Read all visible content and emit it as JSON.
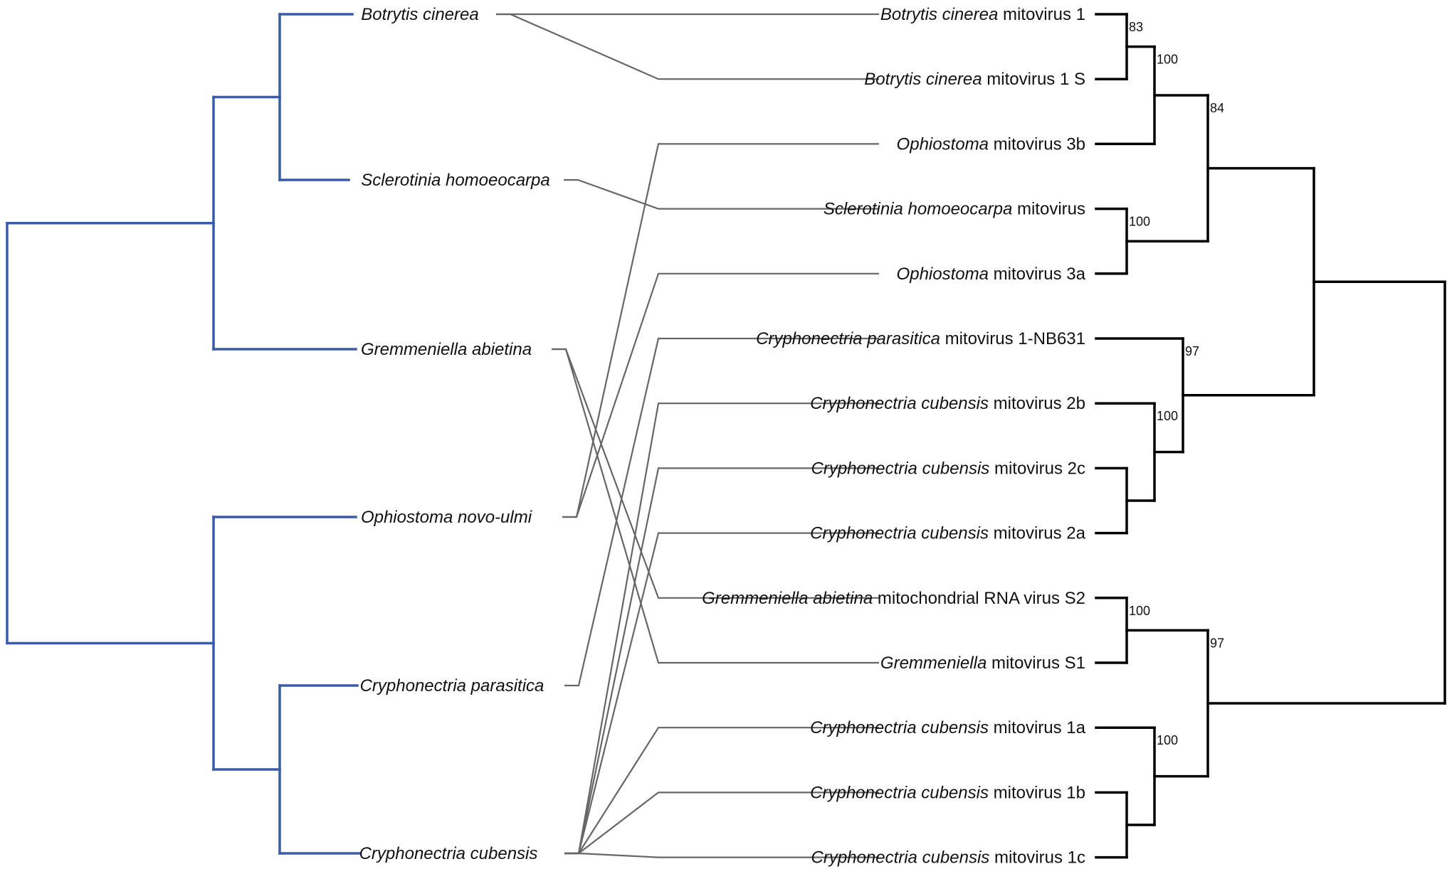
{
  "colors": {
    "host_tree": "#3a5ba8",
    "virus_tree": "#000000",
    "links": "#666666"
  },
  "hosts": [
    {
      "id": "h_bc",
      "name": "Botrytis cinerea"
    },
    {
      "id": "h_sh",
      "name": "Sclerotinia homoeocarpa"
    },
    {
      "id": "h_ga",
      "name": "Gremmeniella abietina"
    },
    {
      "id": "h_on",
      "name": "Ophiostoma novo-ulmi"
    },
    {
      "id": "h_cp",
      "name": "Cryphonectria parasitica"
    },
    {
      "id": "h_cc",
      "name": "Cryphonectria cubensis"
    }
  ],
  "viruses": [
    {
      "id": "v1",
      "italic": "Botrytis cinerea",
      "rest": " mitovirus 1",
      "host": "h_bc"
    },
    {
      "id": "v2",
      "italic": "Botrytis cinerea",
      "rest": " mitovirus 1 S",
      "host": "h_bc"
    },
    {
      "id": "v3",
      "italic": "Ophiostoma",
      "rest": " mitovirus 3b",
      "host": "h_on"
    },
    {
      "id": "v4",
      "italic": "Sclerotinia homoeocarpa",
      "rest": " mitovirus",
      "host": "h_sh"
    },
    {
      "id": "v5",
      "italic": "Ophiostoma",
      "rest": " mitovirus 3a",
      "host": "h_on"
    },
    {
      "id": "v6",
      "italic": "Cryphonectria parasitica",
      "rest": " mitovirus 1-NB631",
      "host": "h_cp"
    },
    {
      "id": "v7",
      "italic": "Cryphonectria cubensis",
      "rest": " mitovirus 2b",
      "host": "h_cc"
    },
    {
      "id": "v8",
      "italic": "Cryphonectria cubensis",
      "rest": " mitovirus 2c",
      "host": "h_cc"
    },
    {
      "id": "v9",
      "italic": "Cryphonectria cubensis",
      "rest": " mitovirus 2a",
      "host": "h_cc"
    },
    {
      "id": "v10",
      "italic": "Gremmeniella abietina",
      "rest": " mitochondrial RNA virus S2",
      "host": "h_ga"
    },
    {
      "id": "v11",
      "italic": "Gremmeniella",
      "rest": " mitovirus S1",
      "host": "h_ga"
    },
    {
      "id": "v12",
      "italic": "Cryphonectria cubensis",
      "rest": " mitovirus 1a",
      "host": "h_cc"
    },
    {
      "id": "v13",
      "italic": "Cryphonectria cubensis",
      "rest": " mitovirus 1b",
      "host": "h_cc"
    },
    {
      "id": "v14",
      "italic": "Cryphonectria cubensis",
      "rest": " mitovirus 1c",
      "host": "h_cc"
    }
  ],
  "support_values": [
    {
      "node": "bc_pair",
      "value": "83"
    },
    {
      "node": "bc_ophb",
      "value": "100"
    },
    {
      "node": "sh_opha",
      "value": "100"
    },
    {
      "node": "clade_a",
      "value": "84"
    },
    {
      "node": "cc2_group",
      "value": "100"
    },
    {
      "node": "cp_cc2",
      "value": "97"
    },
    {
      "node": "ga_pair",
      "value": "100"
    },
    {
      "node": "cc1_group",
      "value": "100"
    },
    {
      "node": "ga_cc1",
      "value": "97"
    }
  ]
}
